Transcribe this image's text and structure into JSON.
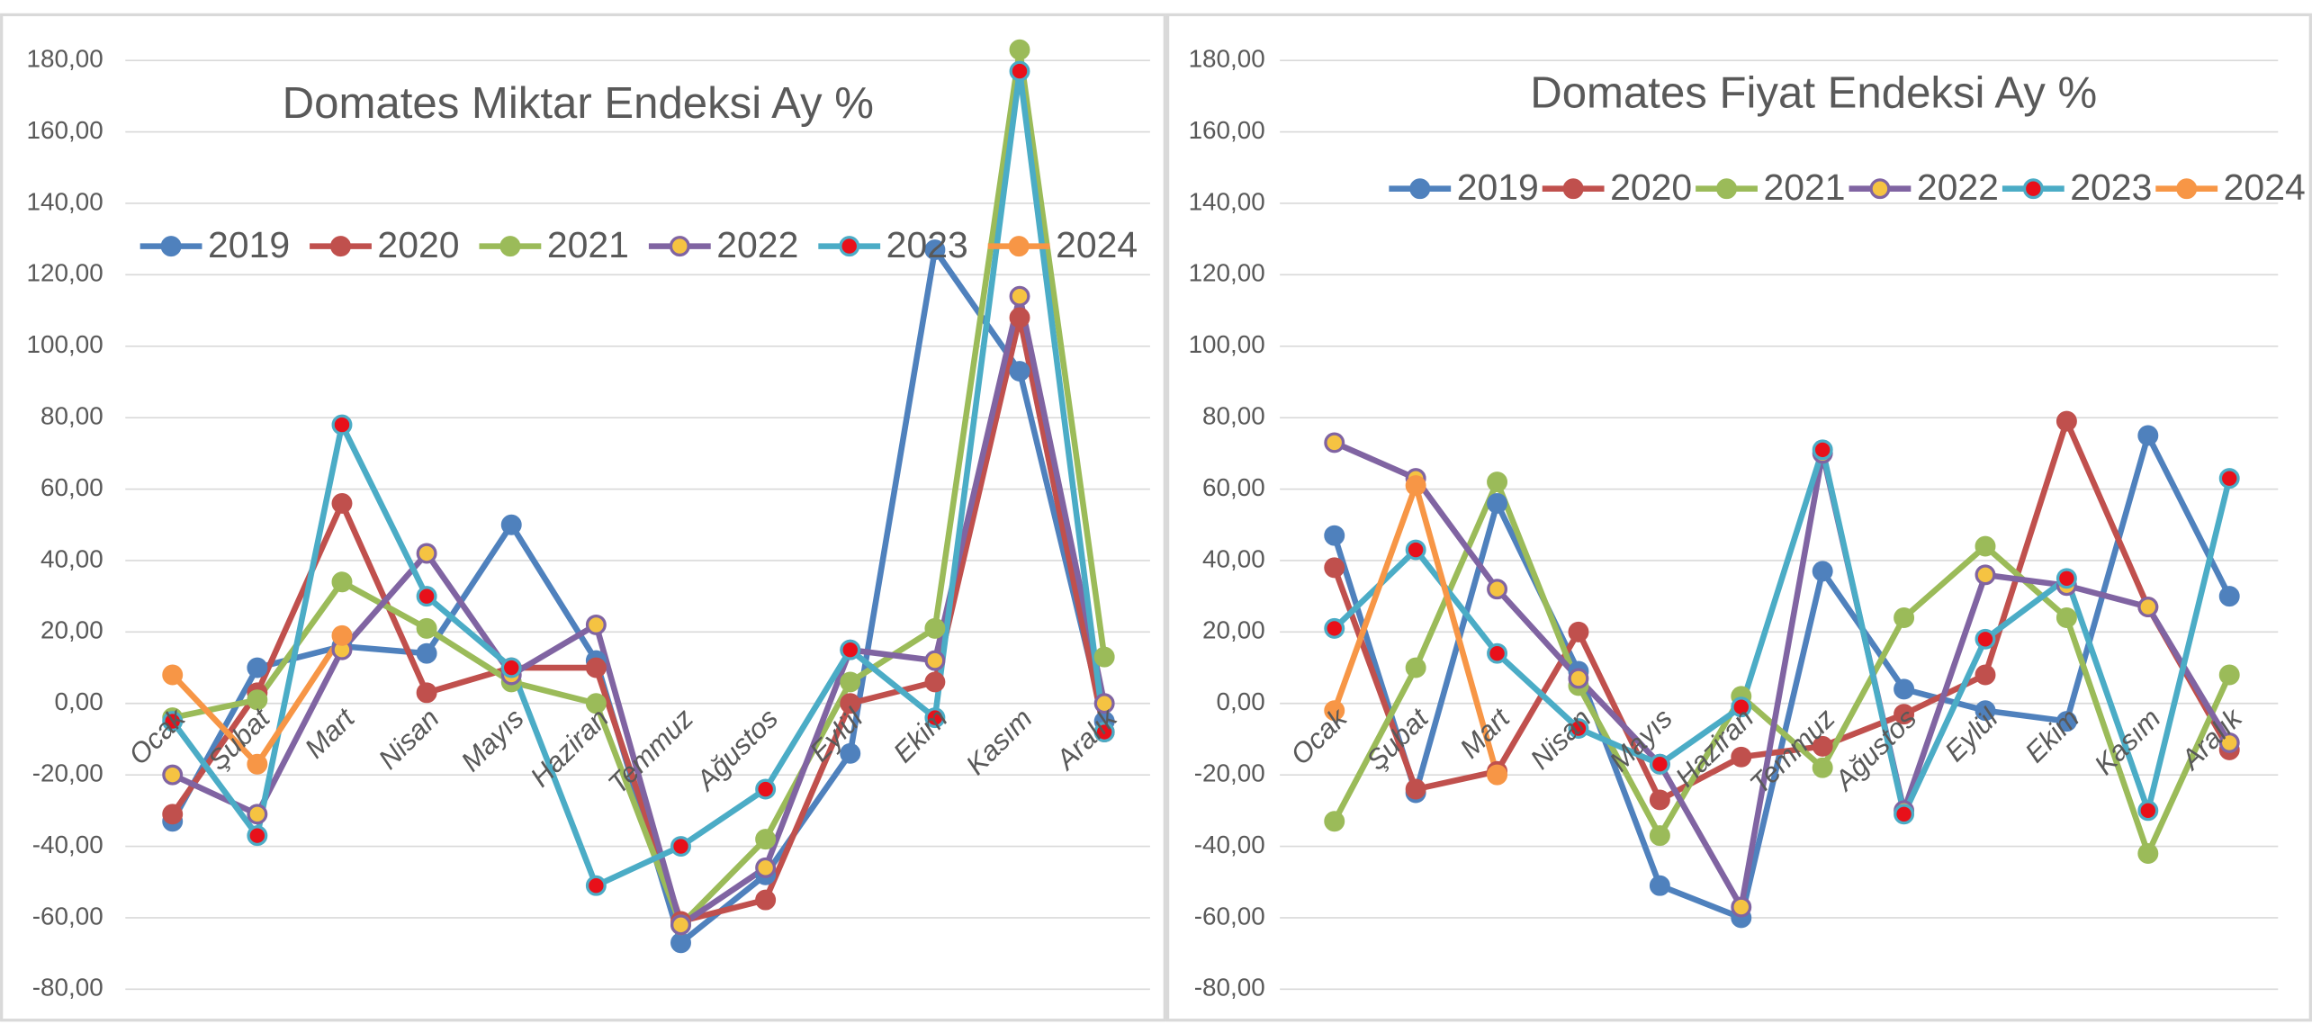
{
  "chart_data": [
    {
      "type": "line",
      "title": "Domates Miktar Endeksi Ay  %",
      "categories": [
        "Ocak",
        "Şubat",
        "Mart",
        "Nisan",
        "Mayıs",
        "Haziran",
        "Temmuz",
        "Ağustos",
        "Eylül",
        "Ekim",
        "Kasım",
        "Aralık"
      ],
      "ylim": [
        -80,
        180
      ],
      "yticks": [
        {
          "value": -80,
          "label": "-80,00"
        },
        {
          "value": -60,
          "label": "-60,00"
        },
        {
          "value": -40,
          "label": "-40,00"
        },
        {
          "value": -20,
          "label": "-20,00"
        },
        {
          "value": 0,
          "label": "0,00"
        },
        {
          "value": 20,
          "label": "20,00"
        },
        {
          "value": 40,
          "label": "40,00"
        },
        {
          "value": 60,
          "label": "60,00"
        },
        {
          "value": 80,
          "label": "80,00"
        },
        {
          "value": 100,
          "label": "100,00"
        },
        {
          "value": 120,
          "label": "120,00"
        },
        {
          "value": 140,
          "label": "140,00"
        },
        {
          "value": 160,
          "label": "160,00"
        },
        {
          "value": 180,
          "label": "180,00"
        }
      ],
      "grid": true,
      "series": [
        {
          "name": "2019",
          "color": "#4f81bd",
          "marker": "#4f81bd",
          "values": [
            -33,
            10,
            16,
            14,
            50,
            12,
            -67,
            -48,
            -14,
            127,
            93,
            -5
          ]
        },
        {
          "name": "2020",
          "color": "#c0504d",
          "marker": "#c0504d",
          "values": [
            -31,
            3,
            56,
            3,
            10,
            10,
            -61,
            -55,
            0,
            6,
            108,
            -8
          ]
        },
        {
          "name": "2021",
          "color": "#9bbb59",
          "marker": "#9bbb59",
          "values": [
            -4,
            1,
            34,
            21,
            6,
            0,
            -62,
            -38,
            6,
            21,
            183,
            13
          ]
        },
        {
          "name": "2022",
          "color": "#8064a2",
          "marker": "#f5c342",
          "values": [
            -20,
            -31,
            15,
            42,
            8,
            22,
            -62,
            -46,
            15,
            12,
            114,
            0
          ]
        },
        {
          "name": "2023",
          "color": "#4bacc6",
          "marker": "#e8101a",
          "values": [
            -5,
            -37,
            78,
            30,
            10,
            -51,
            -40,
            -24,
            15,
            -4,
            177,
            -8
          ]
        },
        {
          "name": "2024",
          "color": "#f79646",
          "marker": "#f79646",
          "values": [
            8,
            -17,
            19,
            null,
            null,
            null,
            null,
            null,
            null,
            null,
            null,
            null
          ]
        }
      ]
    },
    {
      "type": "line",
      "title": "Domates Fiyat Endeksi Ay %",
      "categories": [
        "Ocak",
        "Şubat",
        "Mart",
        "Nisan",
        "Mayıs",
        "Haziran",
        "Temmuz",
        "Ağustos",
        "Eylül",
        "Ekim",
        "Kasım",
        "Aralık"
      ],
      "ylim": [
        -80,
        180
      ],
      "yticks": [
        {
          "value": -80,
          "label": "-80,00"
        },
        {
          "value": -60,
          "label": "-60,00"
        },
        {
          "value": -40,
          "label": "-40,00"
        },
        {
          "value": -20,
          "label": "-20,00"
        },
        {
          "value": 0,
          "label": "0,00"
        },
        {
          "value": 20,
          "label": "20,00"
        },
        {
          "value": 40,
          "label": "40,00"
        },
        {
          "value": 60,
          "label": "60,00"
        },
        {
          "value": 80,
          "label": "80,00"
        },
        {
          "value": 100,
          "label": "100,00"
        },
        {
          "value": 120,
          "label": "120,00"
        },
        {
          "value": 140,
          "label": "140,00"
        },
        {
          "value": 160,
          "label": "160,00"
        },
        {
          "value": 180,
          "label": "180,00"
        }
      ],
      "grid": true,
      "series": [
        {
          "name": "2019",
          "color": "#4f81bd",
          "marker": "#4f81bd",
          "values": [
            47,
            -25,
            56,
            9,
            -51,
            -60,
            37,
            4,
            -2,
            -5,
            75,
            30
          ]
        },
        {
          "name": "2020",
          "color": "#c0504d",
          "marker": "#c0504d",
          "values": [
            38,
            -24,
            -19,
            20,
            -27,
            -15,
            -12,
            -3,
            8,
            79,
            27,
            -13
          ]
        },
        {
          "name": "2021",
          "color": "#9bbb59",
          "marker": "#9bbb59",
          "values": [
            -33,
            10,
            62,
            5,
            -37,
            2,
            -18,
            24,
            44,
            24,
            -42,
            8
          ]
        },
        {
          "name": "2022",
          "color": "#8064a2",
          "marker": "#f5c342",
          "values": [
            73,
            63,
            32,
            7,
            -17,
            -57,
            70,
            -30,
            36,
            33,
            27,
            -11
          ]
        },
        {
          "name": "2023",
          "color": "#4bacc6",
          "marker": "#e8101a",
          "values": [
            21,
            43,
            14,
            -7,
            -17,
            -1,
            71,
            -31,
            18,
            35,
            -30,
            63
          ]
        },
        {
          "name": "2024",
          "color": "#f79646",
          "marker": "#f79646",
          "values": [
            -2,
            61,
            -20,
            null,
            null,
            null,
            null,
            null,
            null,
            null,
            null,
            null
          ]
        }
      ]
    }
  ]
}
